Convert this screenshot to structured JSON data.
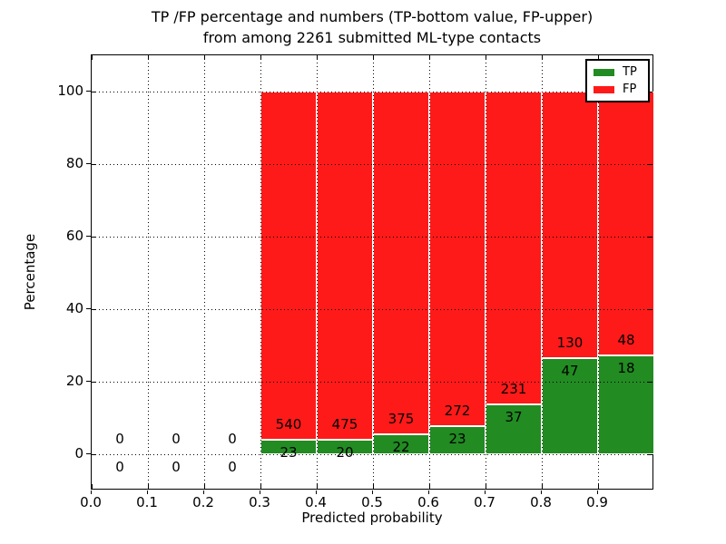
{
  "figure": {
    "title_line1": "TP /FP percentage and numbers (TP-bottom value, FP-upper)",
    "title_line2": "from among 2261 submitted ML-type contacts"
  },
  "chart_data": {
    "type": "bar",
    "stacked": true,
    "title": "TP /FP percentage and numbers (TP-bottom value, FP-upper) from among 2261 submitted ML-type contacts",
    "xlabel": "Predicted probability",
    "ylabel": "Percentage",
    "xlim": [
      0.0,
      1.0
    ],
    "ylim": [
      -10,
      110
    ],
    "xticks": [
      0.0,
      0.1,
      0.2,
      0.3,
      0.4,
      0.5,
      0.6,
      0.7,
      0.8,
      0.9
    ],
    "xtick_labels": [
      "0.0",
      "0.1",
      "0.2",
      "0.3",
      "0.4",
      "0.5",
      "0.6",
      "0.7",
      "0.8",
      "0.9"
    ],
    "yticks": [
      0,
      20,
      40,
      60,
      80,
      100
    ],
    "ytick_labels": [
      "0",
      "20",
      "40",
      "60",
      "80",
      "100"
    ],
    "grid": "dotted black",
    "total_submitted": 2261,
    "colors": {
      "tp": "#228b22",
      "fp": "#ff1a1a",
      "bar_edge": "#ffffff",
      "grid": "#000000"
    },
    "legend": {
      "position": "upper right",
      "entries": [
        {
          "label": "TP",
          "color": "#228b22"
        },
        {
          "label": "FP",
          "color": "#ff1a1a"
        }
      ]
    },
    "series": [
      {
        "name": "TP",
        "counts": [
          0,
          0,
          0,
          23,
          20,
          22,
          23,
          37,
          47,
          18
        ]
      },
      {
        "name": "FP",
        "counts": [
          0,
          0,
          0,
          540,
          475,
          375,
          272,
          231,
          130,
          48
        ]
      }
    ],
    "bins": [
      {
        "range": [
          0.0,
          0.1
        ],
        "tp": 0,
        "fp": 0,
        "tp_pct": 0,
        "fp_pct": 0
      },
      {
        "range": [
          0.1,
          0.2
        ],
        "tp": 0,
        "fp": 0,
        "tp_pct": 0,
        "fp_pct": 0
      },
      {
        "range": [
          0.2,
          0.3
        ],
        "tp": 0,
        "fp": 0,
        "tp_pct": 0,
        "fp_pct": 0
      },
      {
        "range": [
          0.3,
          0.4
        ],
        "tp": 23,
        "fp": 540,
        "tp_pct": 4.09,
        "fp_pct": 95.91
      },
      {
        "range": [
          0.4,
          0.5
        ],
        "tp": 20,
        "fp": 475,
        "tp_pct": 4.04,
        "fp_pct": 95.96
      },
      {
        "range": [
          0.5,
          0.6
        ],
        "tp": 22,
        "fp": 375,
        "tp_pct": 5.54,
        "fp_pct": 94.46
      },
      {
        "range": [
          0.6,
          0.7
        ],
        "tp": 23,
        "fp": 272,
        "tp_pct": 7.8,
        "fp_pct": 92.2
      },
      {
        "range": [
          0.7,
          0.8
        ],
        "tp": 37,
        "fp": 231,
        "tp_pct": 13.81,
        "fp_pct": 86.19
      },
      {
        "range": [
          0.8,
          0.9
        ],
        "tp": 47,
        "fp": 130,
        "tp_pct": 26.55,
        "fp_pct": 73.45
      },
      {
        "range": [
          0.9,
          1.0
        ],
        "tp": 18,
        "fp": 48,
        "tp_pct": 27.27,
        "fp_pct": 72.73
      }
    ]
  }
}
